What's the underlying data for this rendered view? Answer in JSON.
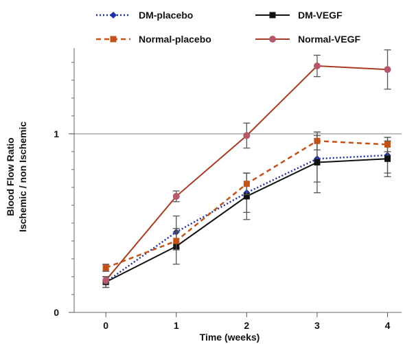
{
  "chart_data": {
    "type": "line",
    "xlabel": "Time (weeks)",
    "ylabel_lines": [
      "Blood Flow Ratio",
      "Ischemic / non Ischemic"
    ],
    "x": [
      0,
      1,
      2,
      3,
      4
    ],
    "xlim": [
      -0.45,
      4.2
    ],
    "ylim": [
      0,
      1.48
    ],
    "y_ticks": [
      0,
      1
    ],
    "y_tick_labels": [
      "0",
      "1"
    ],
    "y_minor_step": 0.1,
    "reference_line_y": 1,
    "legend_position": "top",
    "series": [
      {
        "name": "DM-placebo",
        "color": "#1f2f9e",
        "dash": "dotted",
        "marker": "diamond",
        "values": [
          0.17,
          0.45,
          0.67,
          0.86,
          0.88
        ],
        "errors": [
          0.03,
          0.09,
          0.11,
          0.13,
          0.1
        ]
      },
      {
        "name": "DM-VEGF",
        "color": "#111111",
        "dash": "solid",
        "marker": "square",
        "values": [
          0.17,
          0.37,
          0.65,
          0.84,
          0.86
        ],
        "errors": [
          0.03,
          0.1,
          0.13,
          0.17,
          0.1
        ]
      },
      {
        "name": "Normal-placebo",
        "color": "#c0521a",
        "dash": "dashed",
        "marker": "square",
        "values": [
          0.25,
          0.4,
          0.72,
          0.96,
          0.94
        ],
        "errors": [
          0.02,
          0.05,
          0.06,
          0.05,
          0.04
        ]
      },
      {
        "name": "Normal-VEGF",
        "color": "#a83a22",
        "dash": "solid",
        "marker": "circle",
        "markerColor": "#b5586a",
        "values": [
          0.18,
          0.65,
          0.99,
          1.38,
          1.36
        ],
        "errors": [
          0.02,
          0.03,
          0.07,
          0.06,
          0.11
        ]
      }
    ]
  }
}
